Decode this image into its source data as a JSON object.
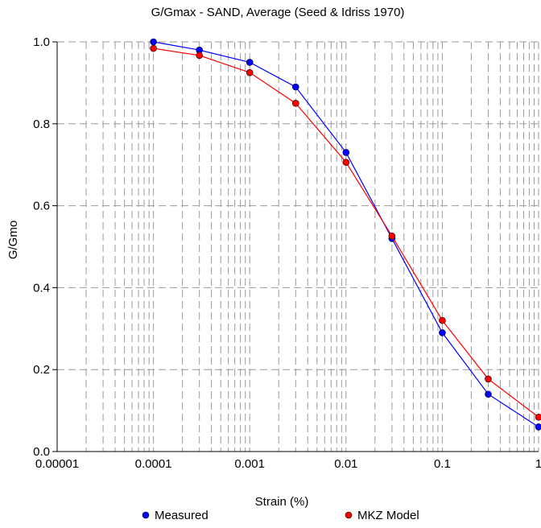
{
  "chart_data": {
    "type": "line",
    "title": "G/Gmax - SAND, Average (Seed & Idriss 1970)",
    "xlabel": "Strain (%)",
    "ylabel": "G/Gmo",
    "xscale": "log",
    "xlim": [
      1e-05,
      1
    ],
    "ylim": [
      0,
      1.0
    ],
    "x_tick_labels": [
      "0.00001",
      "0.0001",
      "0.001",
      "0.01",
      "0.1",
      "1"
    ],
    "y_tick_labels": [
      "0.0",
      "0.2",
      "0.4",
      "0.6",
      "0.8",
      "1.0"
    ],
    "grid": true,
    "legend": "bottom",
    "series": [
      {
        "name": "Measured",
        "color": "#0000ff",
        "x": [
          0.0001,
          0.0003,
          0.001,
          0.003,
          0.01,
          0.03,
          0.1,
          0.3,
          1
        ],
        "y": [
          1.0,
          0.98,
          0.95,
          0.89,
          0.73,
          0.52,
          0.29,
          0.14,
          0.06
        ]
      },
      {
        "name": "MKZ Model",
        "color": "#ff0000",
        "x": [
          0.0001,
          0.0003,
          0.001,
          0.003,
          0.01,
          0.03,
          0.1,
          0.3,
          1
        ],
        "y": [
          0.984,
          0.967,
          0.925,
          0.85,
          0.706,
          0.526,
          0.32,
          0.177,
          0.084
        ]
      }
    ]
  }
}
